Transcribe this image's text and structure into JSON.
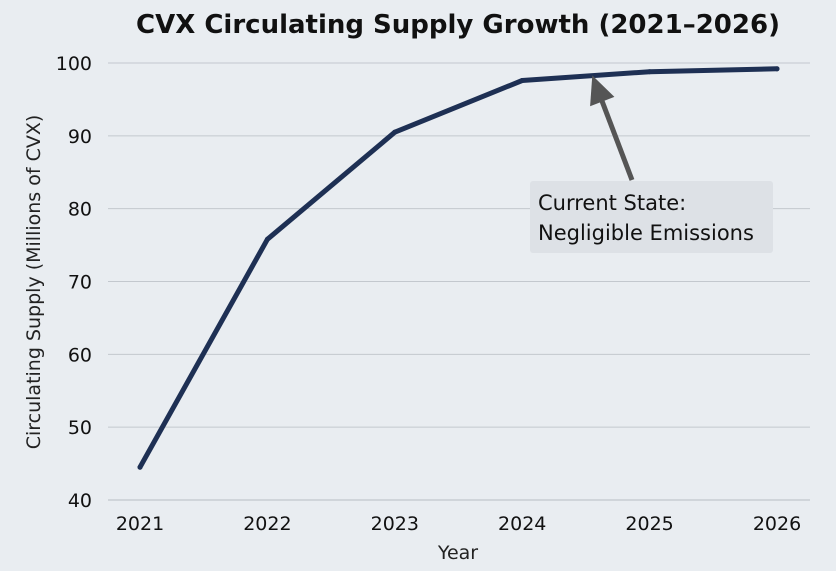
{
  "chart_data": {
    "type": "line",
    "title": "CVX Circulating Supply Growth (2021–2026)",
    "xlabel": "Year",
    "ylabel": "Circulating Supply (Millions of CVX)",
    "x": [
      2021,
      2022,
      2023,
      2024,
      2025,
      2026
    ],
    "y_ticks": [
      40,
      50,
      60,
      70,
      80,
      90,
      100
    ],
    "ylim": [
      40,
      100
    ],
    "xlim": [
      2021,
      2026
    ],
    "grid": "horizontal",
    "series": [
      {
        "values": [
          44.5,
          75.8,
          90.5,
          97.6,
          98.8,
          99.2
        ],
        "color": "#1e3054"
      }
    ],
    "annotation": {
      "lines": [
        "Current State:",
        "Negligible Emissions"
      ],
      "target": {
        "x": 2024.55,
        "y": 98.3
      }
    },
    "colors": {
      "background": "#e9edf1",
      "line": "#1e3054",
      "arrow": "#555555",
      "annotation_box": "#dde1e6"
    }
  }
}
